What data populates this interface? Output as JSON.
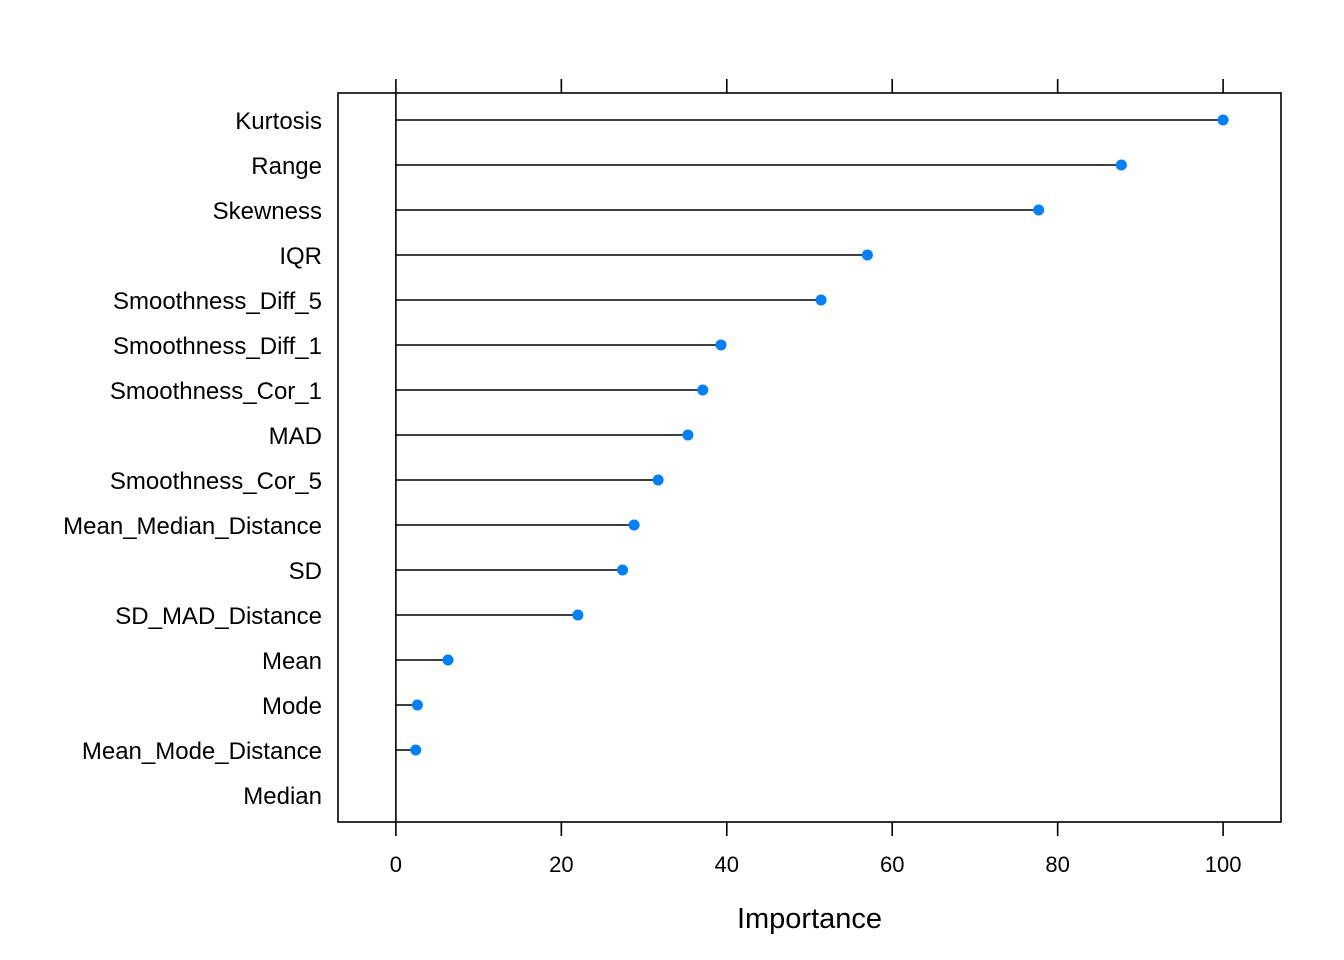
{
  "chart_data": {
    "type": "dot",
    "xlabel": "Importance",
    "xlim": [
      -7,
      107
    ],
    "x_ticks": [
      0,
      20,
      40,
      60,
      80,
      100
    ],
    "tick_labels": [
      "0",
      "20",
      "40",
      "60",
      "80",
      "100"
    ],
    "categories": [
      "Kurtosis",
      "Range",
      "Skewness",
      "IQR",
      "Smoothness_Diff_5",
      "Smoothness_Diff_1",
      "Smoothness_Cor_1",
      "MAD",
      "Smoothness_Cor_5",
      "Mean_Median_Distance",
      "SD",
      "SD_MAD_Distance",
      "Mean",
      "Mode",
      "Mean_Mode_Distance",
      "Median"
    ],
    "values": [
      100,
      87.7,
      77.7,
      57.0,
      51.4,
      39.3,
      37.1,
      35.3,
      31.7,
      28.8,
      27.4,
      22.0,
      6.3,
      2.6,
      2.4,
      0
    ],
    "point_color": "#0080ff",
    "line_color": "#000000",
    "grid": false
  }
}
